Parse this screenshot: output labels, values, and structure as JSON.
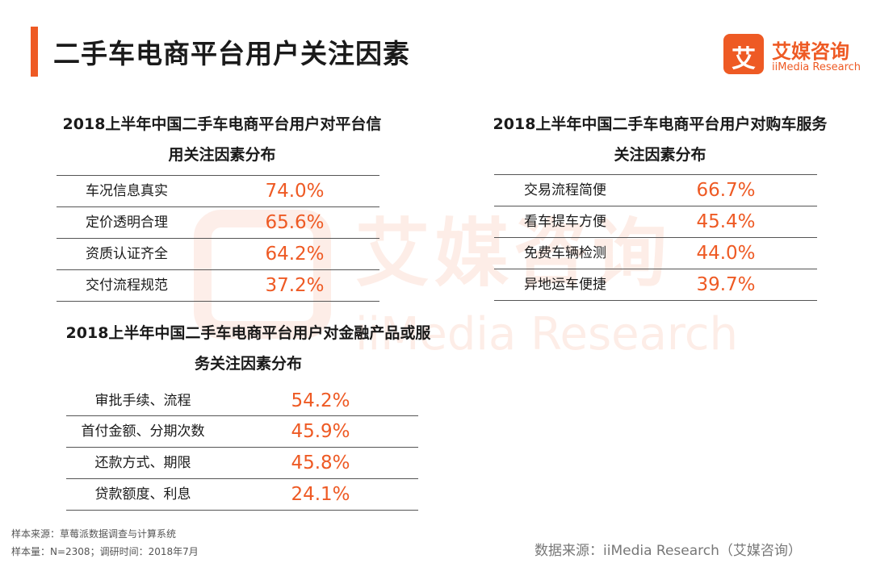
{
  "header": {
    "title": "二手车电商平台用户关注因素",
    "logo_cn": "艾媒咨询",
    "logo_en": "iiMedia Research",
    "logo_glyph": "艾",
    "accent_color": "#ee5a24"
  },
  "watermark": {
    "cn": "艾媒咨询",
    "en": "iiMedia Research"
  },
  "credit": {
    "title_line1": "2018上半年中国二手车电商平台用户对平台信",
    "title_line2": "用关注因素分布",
    "rows": [
      {
        "label": "车况信息真实",
        "value": "74.0%"
      },
      {
        "label": "定价透明合理",
        "value": "65.6%"
      },
      {
        "label": "资质认证齐全",
        "value": "64.2%"
      },
      {
        "label": "交付流程规范",
        "value": "37.2%"
      }
    ]
  },
  "service": {
    "title_line1": "2018上半年中国二手车电商平台用户对购车服务",
    "title_line2": "关注因素分布",
    "rows": [
      {
        "label": "交易流程简便",
        "value": "66.7%"
      },
      {
        "label": "看车提车方便",
        "value": "45.4%"
      },
      {
        "label": "免费车辆检测",
        "value": "44.0%"
      },
      {
        "label": "异地运车便捷",
        "value": "39.7%"
      }
    ]
  },
  "finance": {
    "title_line1": "2018上半年中国二手车电商平台用户对金融产品或服",
    "title_line2": "务关注因素分布",
    "rows": [
      {
        "label": "审批手续、流程",
        "value": "54.2%"
      },
      {
        "label": "首付金额、分期次数",
        "value": "45.9%"
      },
      {
        "label": "还款方式、期限",
        "value": "45.8%"
      },
      {
        "label": "贷款额度、利息",
        "value": "24.1%"
      }
    ]
  },
  "footer": {
    "sample_source": "样本来源：草莓派数据调查与计算系统",
    "sample_size": "样本量：N=2308；调研时间：2018年7月",
    "data_source": "数据来源：iiMedia Research（艾媒咨询）"
  }
}
